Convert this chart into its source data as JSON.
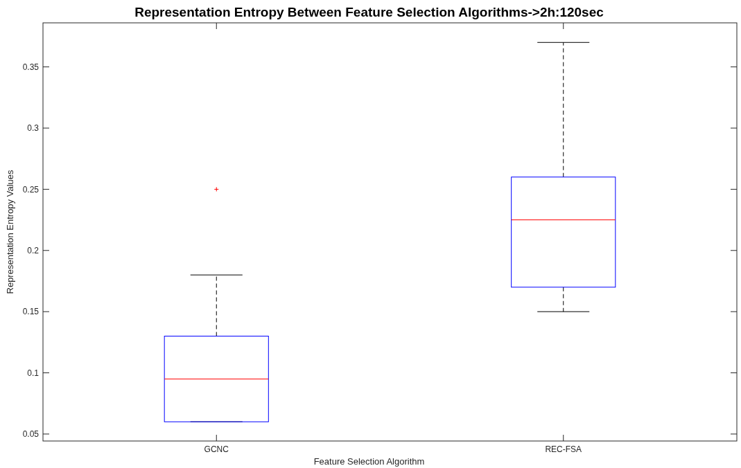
{
  "chart_data": {
    "type": "box",
    "title": "Representation Entropy Between Feature Selection Algorithms->2h:120sec",
    "xlabel": "Feature Selection Algorithm",
    "ylabel": "Representation Entropy Values",
    "categories": [
      "GCNC",
      "REC-FSA"
    ],
    "color": "#0000ff",
    "boxes": [
      {
        "low": 0.06,
        "q1": 0.06,
        "median": 0.095,
        "q3": 0.13,
        "high": 0.18,
        "outliers": [
          0.25
        ]
      },
      {
        "low": 0.15,
        "q1": 0.17,
        "median": 0.225,
        "q3": 0.26,
        "high": 0.37
      }
    ],
    "ylim": [
      0.0443,
      0.386
    ],
    "yticks": [
      0.05,
      0.1,
      0.15,
      0.2,
      0.25,
      0.3,
      0.35
    ]
  }
}
